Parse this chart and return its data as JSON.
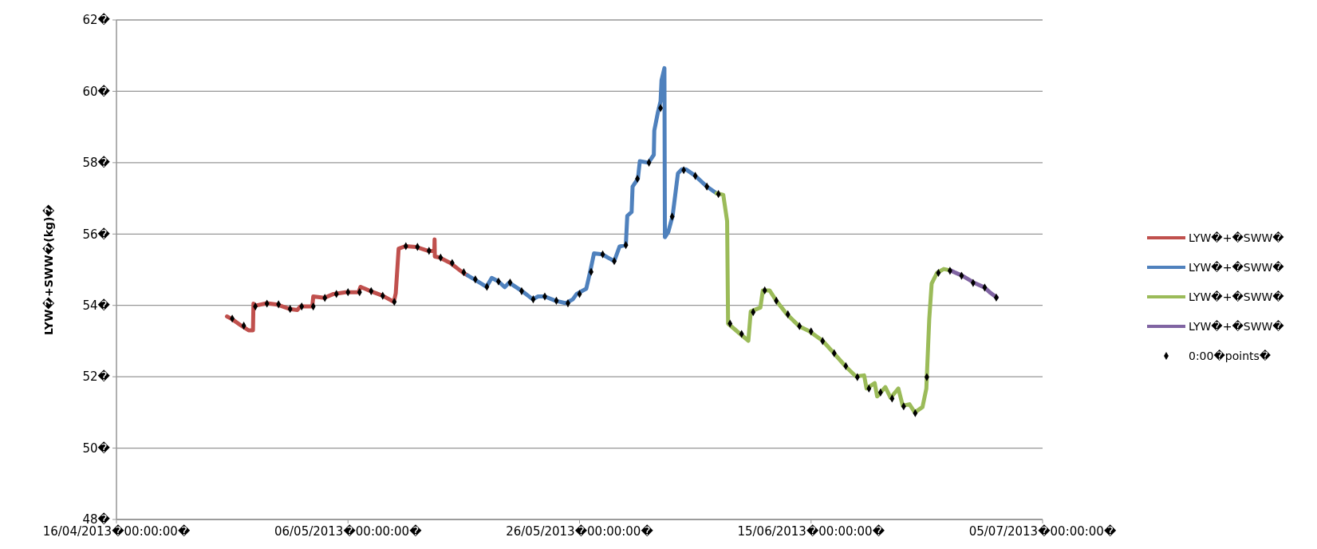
{
  "chart_data": {
    "type": "line",
    "ylabel": "LYW�+SWW�(kg)�",
    "xlim": [
      "2013-04-16",
      "2013-07-05"
    ],
    "xticks": [
      {
        "value": "2013-04-16",
        "label": "16/04/2013�00:00:00�"
      },
      {
        "value": "2013-05-06",
        "label": "06/05/2013�00:00:00�"
      },
      {
        "value": "2013-05-26",
        "label": "26/05/2013�00:00:00�"
      },
      {
        "value": "2013-06-15",
        "label": "15/06/2013�00:00:00�"
      },
      {
        "value": "2013-07-05",
        "label": "05/07/2013�00:00:00�"
      }
    ],
    "ylim": [
      48,
      62
    ],
    "yticks": [
      {
        "value": 48,
        "label": "48�"
      },
      {
        "value": 50,
        "label": "50�"
      },
      {
        "value": 52,
        "label": "52�"
      },
      {
        "value": 54,
        "label": "54�"
      },
      {
        "value": 56,
        "label": "56�"
      },
      {
        "value": 58,
        "label": "58�"
      },
      {
        "value": 60,
        "label": "60�"
      },
      {
        "value": 62,
        "label": "62�"
      }
    ],
    "grid": "y",
    "legend": "right",
    "line_style": "solid",
    "series": [
      {
        "name": "LYW�+�SWW�",
        "color": "#c0504d",
        "x": [
          "2013-04-25T13:00",
          "2013-04-26T00:00",
          "2013-04-26T19:00",
          "2013-04-27T10:00",
          "2013-04-27T19:00",
          "2013-04-27T20:00",
          "2013-04-27T23:00",
          "2013-04-29T00:00",
          "2013-04-29T22:00",
          "2013-04-30T23:00",
          "2013-05-01T15:00",
          "2013-05-01T21:00",
          "2013-05-02T22:00",
          "2013-05-03T00:00",
          "2013-05-03T23:00",
          "2013-05-04T18:00",
          "2013-05-05T19:00",
          "2013-05-06T22:00",
          "2013-05-07T02:00",
          "2013-05-07T23:00",
          "2013-05-09T00:00",
          "2013-05-09T23:00",
          "2013-05-10T03:00",
          "2013-05-10T09:00",
          "2013-05-10T23:00",
          "2013-05-11T21:00",
          "2013-05-12T22:00",
          "2013-05-13T11:00",
          "2013-05-13T11:30",
          "2013-05-13T12:00",
          "2013-05-13T22:00",
          "2013-05-14T20:00",
          "2013-05-15T21:00",
          "2013-05-16T08:00"
        ],
        "values": [
          53.69,
          53.61,
          53.43,
          53.3,
          53.3,
          54.05,
          53.99,
          54.06,
          54.02,
          53.9,
          53.87,
          53.97,
          53.97,
          54.25,
          54.21,
          54.32,
          54.37,
          54.37,
          54.52,
          54.4,
          54.27,
          54.1,
          54.34,
          55.59,
          55.66,
          55.64,
          55.53,
          55.52,
          55.85,
          55.37,
          55.34,
          55.19,
          54.93,
          54.84
        ]
      },
      {
        "name": "LYW�+�SWW�",
        "color": "#4f81bd",
        "x": [
          "2013-05-16T08:00",
          "2013-05-16T22:00",
          "2013-05-17T23:00",
          "2013-05-18T10:00",
          "2013-05-19T00:00",
          "2013-05-19T13:00",
          "2013-05-19T22:00",
          "2013-05-21T01:00",
          "2013-05-21T23:00",
          "2013-05-22T10:00",
          "2013-05-23T00:00",
          "2013-05-23T22:00",
          "2013-05-24T20:00",
          "2013-05-25T10:00",
          "2013-05-25T18:00",
          "2013-05-26T14:00",
          "2013-05-26T22:00",
          "2013-05-27T06:00",
          "2013-05-27T23:00",
          "2013-05-29T00:00",
          "2013-05-29T11:00",
          "2013-05-30T00:00",
          "2013-05-30T03:00",
          "2013-05-30T12:00",
          "2013-05-30T14:00",
          "2013-05-31T01:00",
          "2013-05-31T05:00",
          "2013-05-31T23:00",
          "2013-06-01T10:00",
          "2013-06-01T11:00",
          "2013-06-01T18:00",
          "2013-06-02T00:00",
          "2013-06-02T02:00",
          "2013-06-02T08:00",
          "2013-06-02T09:00",
          "2013-06-02T16:00",
          "2013-06-03T01:00",
          "2013-06-03T12:00",
          "2013-06-03T20:00",
          "2013-06-04T05:00",
          "2013-06-05T00:00",
          "2013-06-06T00:00",
          "2013-06-06T20:00"
        ],
        "values": [
          54.84,
          54.73,
          54.52,
          54.77,
          54.67,
          54.51,
          54.64,
          54.4,
          54.17,
          54.25,
          54.25,
          54.13,
          54.06,
          54.17,
          54.32,
          54.47,
          54.94,
          55.46,
          55.43,
          55.24,
          55.65,
          55.69,
          56.51,
          56.62,
          57.33,
          57.55,
          58.04,
          58.0,
          58.22,
          58.9,
          59.38,
          59.72,
          60.31,
          60.65,
          55.91,
          56.06,
          56.51,
          57.7,
          57.81,
          57.81,
          57.63,
          57.33,
          57.14
        ]
      },
      {
        "name": "LYW�+�SWW�",
        "color": "#9bbb59",
        "x": [
          "2013-06-06T20:00",
          "2013-06-07T10:00",
          "2013-06-07T18:00",
          "2013-06-07T20:00",
          "2013-06-08T21:00",
          "2013-06-09T14:00",
          "2013-06-09T19:00",
          "2013-06-10T15:00",
          "2013-06-10T20:00",
          "2013-06-11T10:00",
          "2013-06-12T00:00",
          "2013-06-12T22:00",
          "2013-06-13T23:00",
          "2013-06-14T21:00",
          "2013-06-16T00:00",
          "2013-06-16T22:00",
          "2013-06-17T23:00",
          "2013-06-18T21:00",
          "2013-06-19T14:00",
          "2013-06-19T19:00",
          "2013-06-20T12:00",
          "2013-06-20T17:00",
          "2013-06-21T10:00",
          "2013-06-21T21:00",
          "2013-06-22T13:00",
          "2013-06-22T22:00",
          "2013-06-23T12:00",
          "2013-06-23T23:00",
          "2013-06-24T15:00",
          "2013-06-24T23:00",
          "2013-06-25T00:00",
          "2013-06-25T05:00",
          "2013-06-25T10:00",
          "2013-06-25T21:00",
          "2013-06-26T11:00",
          "2013-06-27T01:00"
        ],
        "values": [
          57.14,
          57.1,
          56.36,
          53.49,
          53.2,
          53.01,
          53.83,
          53.94,
          54.42,
          54.42,
          54.13,
          53.75,
          53.42,
          53.27,
          53.01,
          52.68,
          52.3,
          52.01,
          52.04,
          51.67,
          51.82,
          51.45,
          51.71,
          51.41,
          51.67,
          51.19,
          51.23,
          51.0,
          51.15,
          51.67,
          52.0,
          53.61,
          54.61,
          54.91,
          55.02,
          54.98
        ]
      },
      {
        "name": "LYW�+�SWW�",
        "color": "#8064a2",
        "x": [
          "2013-06-27T01:00",
          "2013-06-27T09:00",
          "2013-06-28T02:00",
          "2013-06-29T00:00",
          "2013-06-30T00:00",
          "2013-06-30T12:00",
          "2013-07-01T01:00"
        ],
        "values": [
          54.98,
          54.93,
          54.83,
          54.65,
          54.5,
          54.35,
          54.22
        ]
      },
      {
        "name": "0:00�points�",
        "type": "scatter",
        "marker": "diamond",
        "color": "#000000",
        "x": [
          "2013-04-26",
          "2013-04-27",
          "2013-04-28",
          "2013-04-29",
          "2013-04-30",
          "2013-05-01",
          "2013-05-02",
          "2013-05-03",
          "2013-05-04",
          "2013-05-05",
          "2013-05-06",
          "2013-05-07",
          "2013-05-08",
          "2013-05-09",
          "2013-05-10",
          "2013-05-11",
          "2013-05-12",
          "2013-05-13",
          "2013-05-14",
          "2013-05-15",
          "2013-05-16",
          "2013-05-17",
          "2013-05-18",
          "2013-05-19",
          "2013-05-20",
          "2013-05-21",
          "2013-05-22",
          "2013-05-23",
          "2013-05-24",
          "2013-05-25",
          "2013-05-26",
          "2013-05-27",
          "2013-05-28",
          "2013-05-29",
          "2013-05-30",
          "2013-05-31",
          "2013-06-01",
          "2013-06-02",
          "2013-06-03",
          "2013-06-04",
          "2013-06-05",
          "2013-06-06",
          "2013-06-07",
          "2013-06-08",
          "2013-06-09",
          "2013-06-10",
          "2013-06-11",
          "2013-06-12",
          "2013-06-13",
          "2013-06-14",
          "2013-06-15",
          "2013-06-16",
          "2013-06-17",
          "2013-06-18",
          "2013-06-19",
          "2013-06-20",
          "2013-06-21",
          "2013-06-22",
          "2013-06-23",
          "2013-06-24",
          "2013-06-25",
          "2013-06-26",
          "2013-06-27",
          "2013-06-28",
          "2013-06-29",
          "2013-06-30",
          "2013-07-01"
        ],
        "values": [
          53.63,
          53.43,
          53.97,
          54.05,
          54.03,
          53.9,
          53.97,
          53.97,
          54.21,
          54.32,
          54.37,
          54.37,
          54.4,
          54.27,
          54.1,
          55.66,
          55.64,
          55.53,
          55.34,
          55.19,
          54.93,
          54.73,
          54.52,
          54.67,
          54.64,
          54.4,
          54.17,
          54.25,
          54.13,
          54.06,
          54.32,
          54.94,
          55.43,
          55.24,
          55.69,
          57.55,
          58.0,
          59.53,
          56.49,
          57.79,
          57.63,
          57.33,
          57.12,
          53.49,
          53.2,
          53.81,
          54.42,
          54.13,
          53.75,
          53.42,
          53.27,
          53.0,
          52.66,
          52.3,
          51.99,
          51.67,
          51.56,
          51.39,
          51.17,
          50.98,
          51.99,
          54.91,
          54.97,
          54.83,
          54.63,
          54.5,
          54.22
        ]
      }
    ]
  }
}
